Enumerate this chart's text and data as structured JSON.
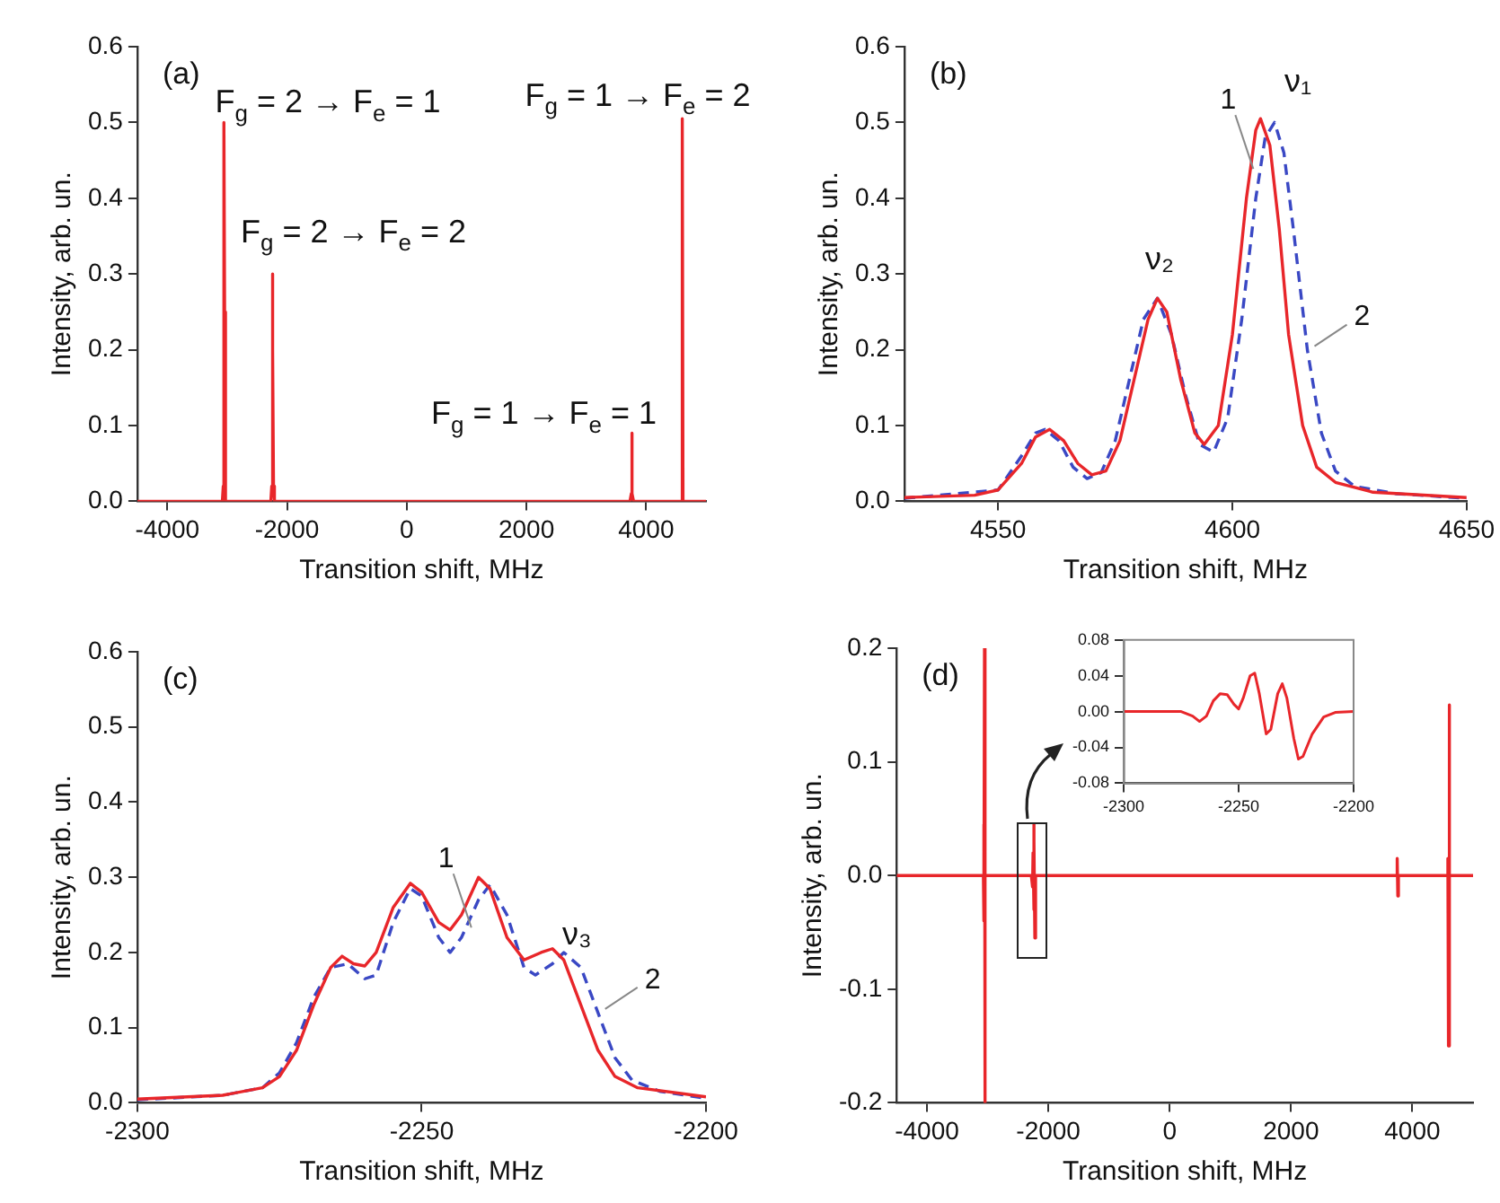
{
  "chart_data": [
    {
      "type": "line",
      "xlabel": "Transition shift, MHz",
      "ylabel": "Intensity, arb. un.",
      "xlim": [
        -4500,
        5000
      ],
      "xticks": [
        -4000,
        -2000,
        0,
        2000,
        4000
      ],
      "ylim": [
        0,
        0.6
      ],
      "yticks": [
        {
          "value": 0,
          "label": "0.0"
        },
        0.1,
        0.2,
        0.3,
        0.4,
        0.5,
        0.6
      ],
      "grid": false,
      "legend": false,
      "marker": "none",
      "series": [
        {
          "color": "#e8262a",
          "x": [
            -4500,
            -3080,
            -3065,
            -3058,
            -3050,
            -3042,
            -3035,
            -3020,
            -2270,
            -2255,
            -2246,
            -2240,
            -2234,
            -2225,
            -2210,
            3730,
            3752,
            3760,
            3768,
            3790,
            4570,
            4592,
            4604,
            4616,
            5000
          ],
          "values": [
            0,
            0,
            0.02,
            0.25,
            0.5,
            0.25,
            0.02,
            0,
            0,
            0.02,
            0.2,
            0.3,
            0.2,
            0.02,
            0,
            0,
            0.01,
            0.09,
            0.01,
            0,
            0,
            0,
            0.505,
            0,
            0
          ]
        }
      ],
      "annotations": [
        "(a)",
        "F$_{g}$ = 2 → F$_{e}$ = 1",
        "F$_{g}$ = 2 → F$_{e}$ = 2",
        "F$_{g}$ = 1 → F$_{e}$ = 1",
        "F$_{g}$ = 1 → F$_{e}$ = 2"
      ]
    },
    {
      "type": "line",
      "xlabel": "Transition shift, MHz",
      "ylabel": "Intensity, arb. un.",
      "xlim": [
        4530,
        4650
      ],
      "xticks": [
        4550,
        4600,
        4650
      ],
      "ylim": [
        0,
        0.6
      ],
      "yticks": [
        {
          "value": 0,
          "label": "0.0"
        },
        0.1,
        0.2,
        0.3,
        0.4,
        0.5,
        0.6
      ],
      "grid": false,
      "legend": false,
      "marker": "none",
      "series": [
        {
          "name": "1",
          "color": "#e8262a",
          "line_style": "solid",
          "x": [
            4530,
            4545,
            4550,
            4555,
            4558,
            4561,
            4564,
            4567,
            4570,
            4573,
            4576,
            4579,
            4582,
            4584,
            4586,
            4589,
            4592,
            4594,
            4597,
            4600,
            4603,
            4605,
            4606,
            4608,
            4610,
            4612,
            4615,
            4618,
            4622,
            4630,
            4650
          ],
          "values": [
            0.005,
            0.008,
            0.015,
            0.05,
            0.085,
            0.095,
            0.08,
            0.05,
            0.035,
            0.04,
            0.08,
            0.16,
            0.24,
            0.268,
            0.25,
            0.16,
            0.09,
            0.075,
            0.1,
            0.22,
            0.4,
            0.49,
            0.505,
            0.47,
            0.36,
            0.22,
            0.1,
            0.045,
            0.025,
            0.012,
            0.005
          ]
        },
        {
          "name": "2",
          "color": "#3a48c4",
          "line_style": "dashed",
          "x": [
            4530,
            4550,
            4555,
            4558,
            4560,
            4563,
            4566,
            4569,
            4572,
            4575,
            4578,
            4581,
            4584,
            4587,
            4590,
            4593,
            4596,
            4599,
            4602,
            4605,
            4607,
            4609,
            4611,
            4613,
            4616,
            4619,
            4622,
            4626,
            4635,
            4650
          ],
          "values": [
            0.004,
            0.015,
            0.06,
            0.09,
            0.095,
            0.08,
            0.045,
            0.03,
            0.038,
            0.08,
            0.16,
            0.24,
            0.268,
            0.22,
            0.14,
            0.075,
            0.065,
            0.11,
            0.24,
            0.4,
            0.48,
            0.5,
            0.46,
            0.36,
            0.2,
            0.09,
            0.04,
            0.02,
            0.01,
            0.004
          ]
        }
      ],
      "annotations": [
        "(b)",
        "ν₁",
        "ν₂"
      ]
    },
    {
      "type": "line",
      "xlabel": "Transition shift, MHz",
      "ylabel": "Intensity, arb. un.",
      "xlim": [
        -2300,
        -2200
      ],
      "xticks": [
        -2300,
        -2250,
        -2200
      ],
      "ylim": [
        0,
        0.6
      ],
      "yticks": [
        {
          "value": 0,
          "label": "0.0"
        },
        0.1,
        0.2,
        0.3,
        0.4,
        0.5,
        0.6
      ],
      "grid": false,
      "legend": false,
      "marker": "none",
      "series": [
        {
          "name": "1",
          "color": "#e8262a",
          "line_style": "solid",
          "x": [
            -2300,
            -2285,
            -2278,
            -2275,
            -2272,
            -2269,
            -2266,
            -2264,
            -2262,
            -2260,
            -2258,
            -2255,
            -2252,
            -2250,
            -2247,
            -2245,
            -2243,
            -2240,
            -2238,
            -2235,
            -2232,
            -2229,
            -2227,
            -2225,
            -2222,
            -2219,
            -2216,
            -2212,
            -2200
          ],
          "values": [
            0.005,
            0.01,
            0.02,
            0.035,
            0.07,
            0.13,
            0.18,
            0.195,
            0.185,
            0.182,
            0.2,
            0.26,
            0.292,
            0.28,
            0.24,
            0.23,
            0.25,
            0.3,
            0.285,
            0.22,
            0.19,
            0.2,
            0.205,
            0.19,
            0.13,
            0.07,
            0.035,
            0.02,
            0.008
          ]
        },
        {
          "name": "2",
          "color": "#3a48c4",
          "line_style": "dashed",
          "x": [
            -2300,
            -2285,
            -2278,
            -2275,
            -2272,
            -2269,
            -2266,
            -2263,
            -2260,
            -2258,
            -2255,
            -2252,
            -2250,
            -2247,
            -2245,
            -2243,
            -2240,
            -2238,
            -2235,
            -2232,
            -2230,
            -2227,
            -2225,
            -2222,
            -2219,
            -2216,
            -2213,
            -2208,
            -2200
          ],
          "values": [
            0.004,
            0.01,
            0.02,
            0.04,
            0.08,
            0.14,
            0.18,
            0.185,
            0.165,
            0.17,
            0.24,
            0.285,
            0.275,
            0.22,
            0.2,
            0.22,
            0.27,
            0.29,
            0.25,
            0.18,
            0.17,
            0.185,
            0.2,
            0.18,
            0.12,
            0.06,
            0.03,
            0.015,
            0.006
          ]
        }
      ],
      "annotations": [
        "(c)",
        "ν₃"
      ]
    },
    {
      "type": "line",
      "xlabel": "Transition shift, MHz",
      "ylabel": "Intensity, arb. un.",
      "xlim": [
        -4500,
        5000
      ],
      "xticks": [
        -4000,
        -2000,
        0,
        2000,
        4000
      ],
      "ylim": [
        -0.2,
        0.2
      ],
      "yticks": [
        -0.2,
        -0.1,
        {
          "value": 0,
          "label": "0.0"
        },
        0.1,
        0.2
      ],
      "grid": false,
      "legend": false,
      "marker": "none",
      "series": [
        {
          "color": "#e8262a",
          "x": [
            -4500,
            -3070,
            -3065,
            -3058,
            -3052,
            -3046,
            -3040,
            -2280,
            -2260,
            -2252,
            -2244,
            -2236,
            -2230,
            -2222,
            -2210,
            3740,
            3750,
            3760,
            3770,
            4570,
            4585,
            4595,
            4605,
            4615,
            5000
          ],
          "values": [
            0,
            0,
            0.045,
            -0.04,
            0.2,
            -0.2,
            0,
            0,
            -0.01,
            0.02,
            0.045,
            -0.03,
            0.03,
            -0.055,
            0,
            0,
            0.015,
            -0.018,
            0,
            0,
            0.015,
            -0.15,
            0.15,
            0,
            0
          ]
        }
      ],
      "annotations": [
        "(d)"
      ]
    },
    {
      "type": "line",
      "xlim": [
        -2300,
        -2200
      ],
      "xticks": [
        -2300,
        -2250,
        -2200
      ],
      "ylim": [
        -0.08,
        0.08
      ],
      "yticks": [
        {
          "value": -0.08,
          "label": "-0.08"
        },
        {
          "value": -0.04,
          "label": "-0.04"
        },
        {
          "value": 0,
          "label": "0.00"
        },
        {
          "value": 0.04,
          "label": "0.04"
        },
        {
          "value": 0.08,
          "label": "0.08"
        }
      ],
      "grid": false,
      "legend": false,
      "marker": "none",
      "series": [
        {
          "color": "#e8262a",
          "x": [
            -2300,
            -2275,
            -2270,
            -2267,
            -2264,
            -2261,
            -2258,
            -2255,
            -2252,
            -2250,
            -2248,
            -2245,
            -2243,
            -2241,
            -2238,
            -2236,
            -2233,
            -2231,
            -2229,
            -2226,
            -2224,
            -2222,
            -2218,
            -2213,
            -2208,
            -2200
          ],
          "values": [
            0,
            0,
            -0.005,
            -0.011,
            -0.005,
            0.012,
            0.02,
            0.019,
            0.008,
            0.003,
            0.015,
            0.04,
            0.043,
            0.02,
            -0.025,
            -0.02,
            0.02,
            0.031,
            0.015,
            -0.03,
            -0.053,
            -0.05,
            -0.025,
            -0.006,
            -0.001,
            0
          ]
        }
      ]
    }
  ]
}
